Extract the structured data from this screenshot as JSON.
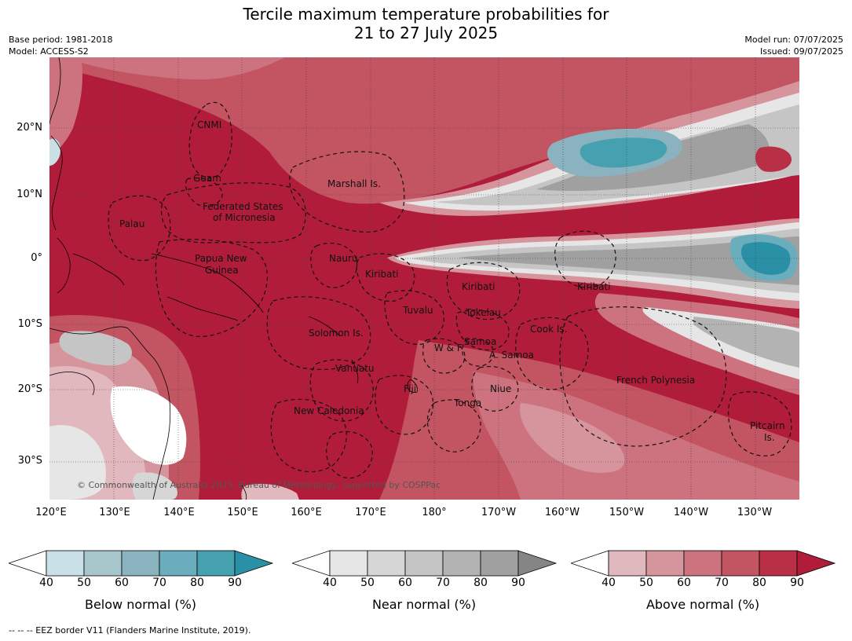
{
  "title": {
    "line1": "Tercile maximum temperature probabilities for",
    "line2": "21 to 27 July 2025"
  },
  "meta": {
    "base_period": "Base period: 1981-2018",
    "model": "Model: ACCESS-S2",
    "model_run": "Model run: 07/07/2025",
    "issued": "Issued: 09/07/2025"
  },
  "map": {
    "lat_ticks": [
      "20°N",
      "10°N",
      "0°",
      "10°S",
      "20°S",
      "30°S"
    ],
    "lon_ticks": [
      "120°E",
      "130°E",
      "140°E",
      "150°E",
      "160°E",
      "170°E",
      "180°",
      "170°W",
      "160°W",
      "150°W",
      "140°W",
      "130°W"
    ],
    "places": {
      "cnmi": "CNMI",
      "guam": "Guam",
      "palau": "Palau",
      "fsm_1": "Federated States",
      "fsm_2": "of Micronesia",
      "marshall": "Marshall Is.",
      "png_1": "Papua New",
      "png_2": "Guinea",
      "nauru": "Nauru",
      "kiribati_w": "Kiribati",
      "kiribati_c": "Kiribati",
      "kiribati_e": "Kiribati",
      "tuvalu": "Tuvalu",
      "tokelau": "Tokelau",
      "cook": "Cook Is.",
      "solomon": "Solomon Is.",
      "wf": "W & F",
      "samoa": "Samoa",
      "asamoa": "A. Samoa",
      "vanuatu": "Vanuatu",
      "fiji": "Fiji",
      "niue": "Niue",
      "tonga": "Tonga",
      "french_polynesia": "French Polynesia",
      "new_caledonia": "New Caledonia",
      "pitcairn_1": "Pitcairn",
      "pitcairn_2": "Is."
    },
    "copyright": "© Commonwealth of Australia 2025, Bureau of Meteorology, supported by COSPPac",
    "colors": {
      "above": [
        "#e0b8bd",
        "#d6959d",
        "#cd737f",
        "#c35462",
        "#b92f46",
        "#b01c3a"
      ],
      "near": [
        "#e6e6e6",
        "#d6d6d6",
        "#c5c5c5",
        "#b3b3b3",
        "#a0a0a0",
        "#858585"
      ],
      "below": [
        "#c8e0e6",
        "#a6c6cc",
        "#8ab2bf",
        "#6aadbc",
        "#45a0b0",
        "#2a90a6"
      ]
    }
  },
  "colorbars": [
    {
      "name": "below",
      "caption": "Below normal (%)",
      "ticks": [
        "40",
        "50",
        "60",
        "70",
        "80",
        "90"
      ],
      "colors": [
        "#ffffff",
        "#c8e0e6",
        "#a6c6cc",
        "#8ab2bf",
        "#6aadbc",
        "#45a0b0",
        "#2a90a6"
      ]
    },
    {
      "name": "near",
      "caption": "Near normal (%)",
      "ticks": [
        "40",
        "50",
        "60",
        "70",
        "80",
        "90"
      ],
      "colors": [
        "#ffffff",
        "#e6e6e6",
        "#d6d6d6",
        "#c5c5c5",
        "#b3b3b3",
        "#a0a0a0",
        "#858585"
      ]
    },
    {
      "name": "above",
      "caption": "Above normal (%)",
      "ticks": [
        "40",
        "50",
        "60",
        "70",
        "80",
        "90"
      ],
      "colors": [
        "#ffffff",
        "#e0b8bd",
        "#d6959d",
        "#cd737f",
        "#c35462",
        "#b92f46",
        "#b01c3a"
      ]
    }
  ],
  "footer": "--  --  -- EEZ border V11 (Flanders Marine Institute, 2019)."
}
